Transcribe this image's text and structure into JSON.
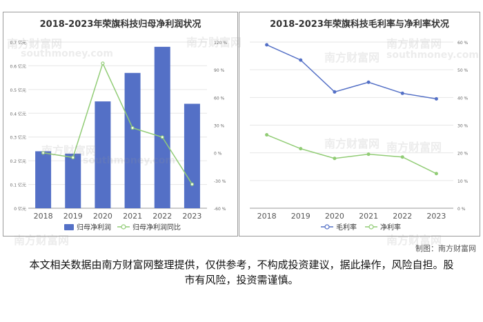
{
  "chart_data": [
    {
      "type": "bar",
      "title": "2018-2023年荣旗科技归母净利润状况",
      "categories": [
        "2018",
        "2019",
        "2020",
        "2021",
        "2022",
        "2023"
      ],
      "y_left_ticks": [
        "0 亿元",
        "0.1 亿元",
        "0.2 亿元",
        "0.3 亿元",
        "0.4 亿元",
        "0.5 亿元",
        "0.6 亿元",
        "0.7 亿元"
      ],
      "y_right_ticks": [
        "-60 %",
        "-30 %",
        "0 %",
        "30 %",
        "60 %",
        "90 %",
        "120 %"
      ],
      "ylim_left": [
        0,
        0.7
      ],
      "ylim_right": [
        -60,
        120
      ],
      "series": [
        {
          "name": "归母净利润",
          "type": "bar",
          "axis": "left",
          "color": "#5470c6",
          "values": [
            0.24,
            0.23,
            0.45,
            0.57,
            0.68,
            0.44
          ]
        },
        {
          "name": "归母净利润同比",
          "type": "line",
          "axis": "right",
          "color": "#91cc75",
          "values": [
            0,
            -5,
            97,
            27,
            17,
            -34
          ]
        }
      ],
      "legend": "bottom",
      "grid": true
    },
    {
      "type": "line",
      "title": "2018-2023年荣旗科技毛利率与净利率状况",
      "categories": [
        "2018",
        "2019",
        "2020",
        "2021",
        "2022",
        "2023"
      ],
      "y_right_ticks": [
        "0 %",
        "10 %",
        "20 %",
        "30 %",
        "40 %",
        "50 %",
        "60 %"
      ],
      "ylim": [
        0,
        60
      ],
      "series": [
        {
          "name": "毛利率",
          "color": "#5470c6",
          "values": [
            59,
            53.5,
            42,
            45.5,
            41.5,
            39.5
          ]
        },
        {
          "name": "净利率",
          "color": "#91cc75",
          "values": [
            26.5,
            21.5,
            18,
            19.5,
            18.5,
            12.5
          ]
        }
      ],
      "legend": "bottom",
      "grid": true
    }
  ],
  "watermark": {
    "text": "南方财富网",
    "latin": "southmoney.com"
  },
  "credit": "制图：南方财富网",
  "disclaimer": "本文相关数据由南方财富网整理提供，仅供参考，不构成投资建议，据此操作，风险自担。股市有风险，投资需谨慎。"
}
